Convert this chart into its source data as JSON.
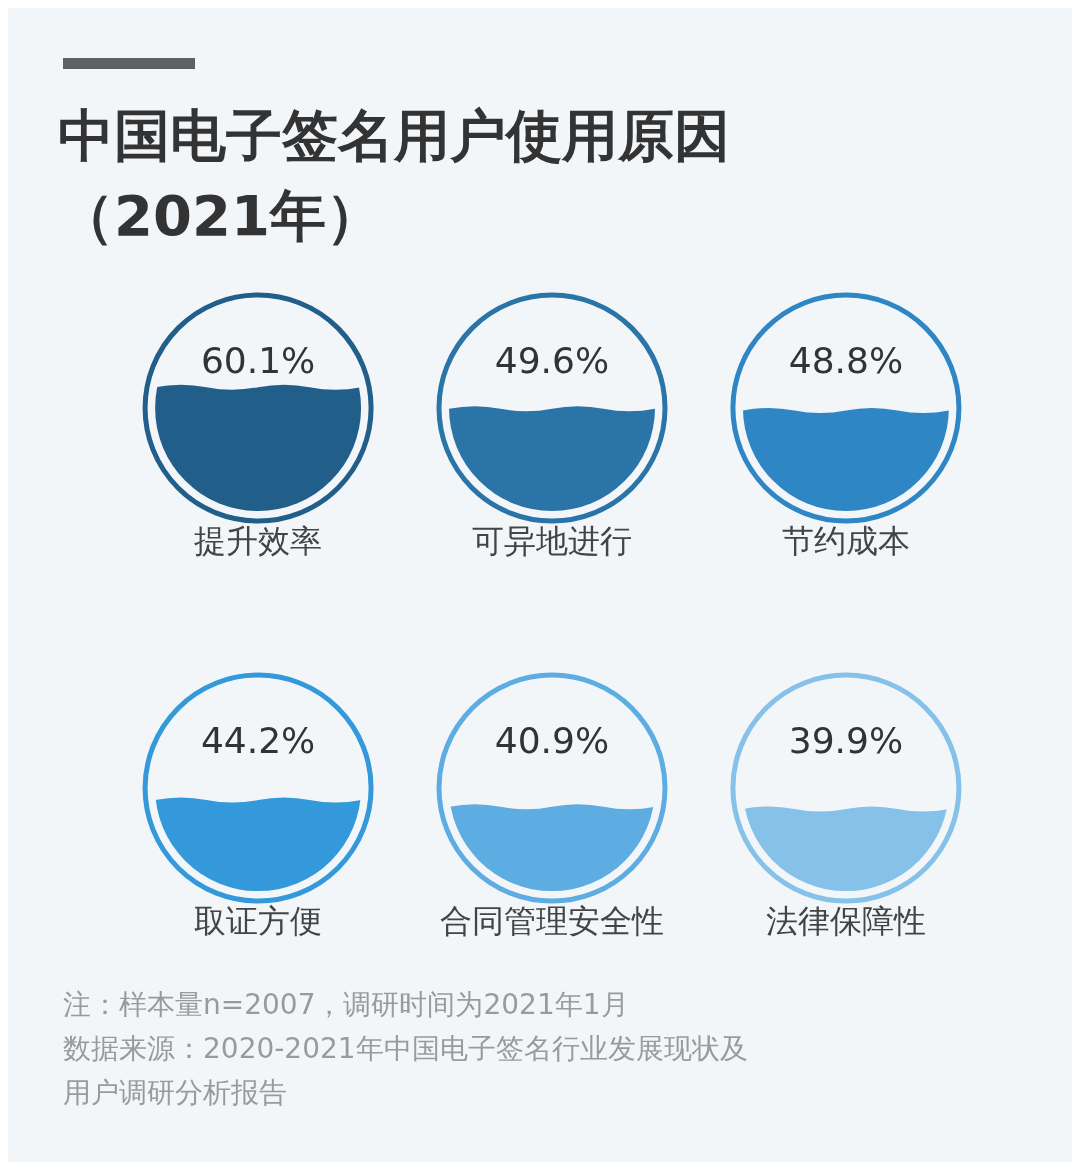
{
  "chart_data": {
    "type": "other",
    "title": "中国电子签名用户使用原因（2021年）",
    "categories": [
      "提升效率",
      "可异地进行",
      "节约成本",
      "取证方便",
      "合同管理安全性",
      "法律保障性"
    ],
    "values": [
      60.1,
      49.6,
      48.8,
      44.2,
      40.9,
      39.9
    ],
    "value_labels": [
      "60.1%",
      "49.6%",
      "48.8%",
      "44.2%",
      "40.9%",
      "39.9%"
    ],
    "colors": [
      "#225e8a",
      "#2a74a8",
      "#2e86c4",
      "#3399db",
      "#5dade2",
      "#85c1e9"
    ],
    "annotations": [
      "注：样本量n=2007，调研时间为2021年1月",
      "数据来源：2020-2021年中国电子签名行业发展现状及用户调研分析报告"
    ]
  }
}
